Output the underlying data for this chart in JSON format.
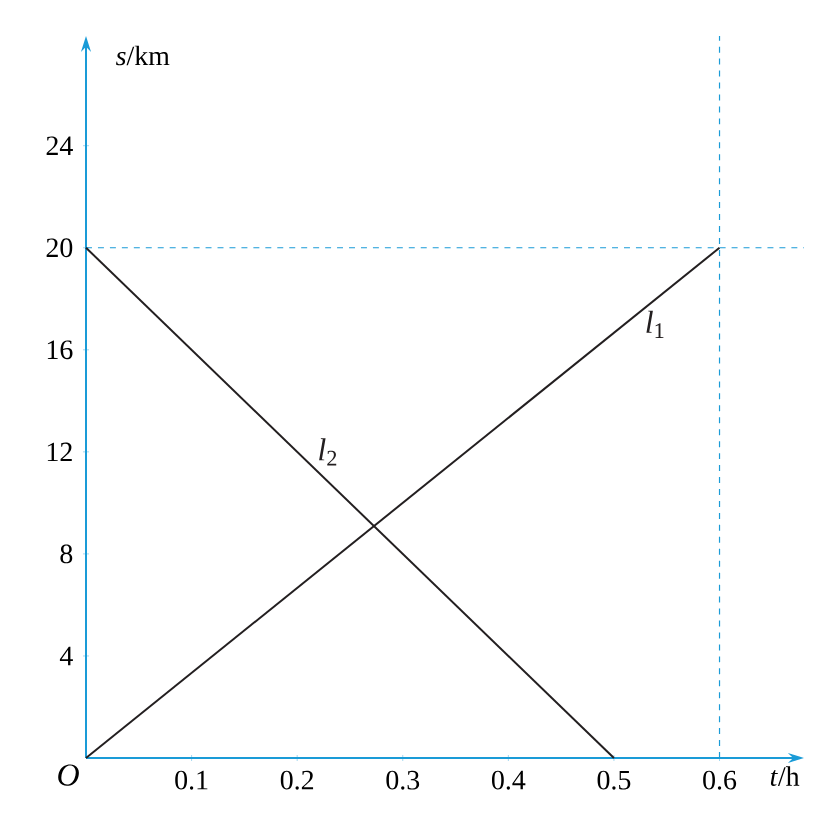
{
  "chart_data": {
    "type": "line",
    "xlabel": "*t*/h",
    "ylabel": "*s*/km",
    "xlim": [
      0,
      0.68
    ],
    "ylim": [
      0,
      28.3
    ],
    "xticks": [
      0.1,
      0.2,
      0.3,
      0.4,
      0.5,
      0.6
    ],
    "yticks": [
      4,
      8,
      12,
      16,
      20,
      24
    ],
    "series": [
      {
        "name": "*l*$_{1}$",
        "color": "#231f20",
        "x": [
          0,
          0.6
        ],
        "values": [
          0,
          20
        ]
      },
      {
        "name": "*l*$_{2}$",
        "color": "#231f20",
        "x": [
          0,
          0.5
        ],
        "values": [
          20,
          0
        ]
      }
    ],
    "ref_lines": [
      {
        "axis": "y",
        "value": 20,
        "color": "#1a9bd7",
        "line_style": "dashed"
      },
      {
        "axis": "x",
        "value": 0.6,
        "color": "#1a9bd7",
        "line_style": "dashed"
      }
    ],
    "annotations": [
      "O"
    ],
    "grid": false,
    "legend": false
  }
}
